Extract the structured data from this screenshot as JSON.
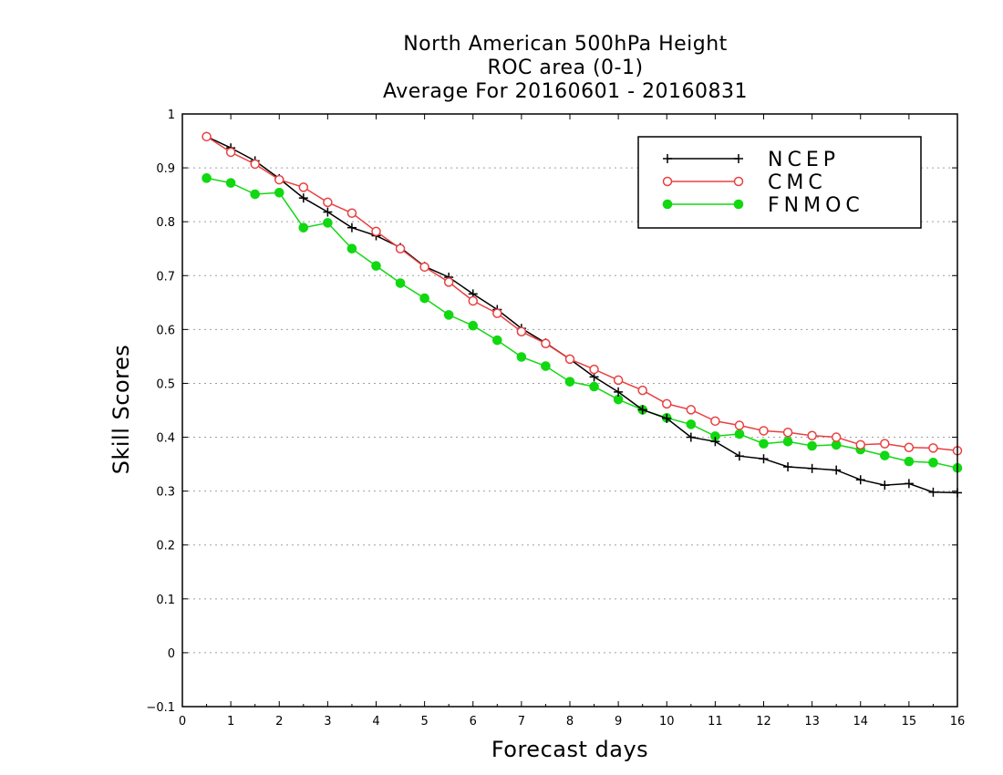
{
  "chart_data": {
    "type": "line",
    "title": [
      "North American 500hPa Height",
      "ROC area (0-1)",
      "Average For 20160601 - 20160831"
    ],
    "xlabel": "Forecast days",
    "ylabel": "Skill Scores",
    "xlim": [
      0,
      16
    ],
    "ylim": [
      -0.1,
      1
    ],
    "xticks": [
      0,
      1,
      2,
      3,
      4,
      5,
      6,
      7,
      8,
      9,
      10,
      11,
      12,
      13,
      14,
      15,
      16
    ],
    "yticks": [
      -0.1,
      0,
      0.1,
      0.2,
      0.3,
      0.4,
      0.5,
      0.6,
      0.7,
      0.8,
      0.9,
      1
    ],
    "ytick_labels": [
      "−0.1",
      "0",
      "0.1",
      "0.2",
      "0.3",
      "0.4",
      "0.5",
      "0.6",
      "0.7",
      "0.8",
      "0.9",
      "1"
    ],
    "grid": "horizontal dotted",
    "legend_position": "top-right",
    "x": [
      0.5,
      1,
      1.5,
      2,
      2.5,
      3,
      3.5,
      4,
      4.5,
      5,
      5.5,
      6,
      6.5,
      7,
      7.5,
      8,
      8.5,
      9,
      9.5,
      10,
      10.5,
      11,
      11.5,
      12,
      12.5,
      13,
      13.5,
      14,
      14.5,
      15,
      15.5,
      16
    ],
    "series": [
      {
        "name": "NCEP",
        "color": "#000000",
        "marker": "plus",
        "values": [
          0.958,
          0.937,
          0.913,
          0.88,
          0.844,
          0.818,
          0.789,
          0.774,
          0.752,
          0.717,
          0.697,
          0.666,
          0.637,
          0.602,
          0.575,
          0.545,
          0.512,
          0.484,
          0.451,
          0.435,
          0.4,
          0.392,
          0.365,
          0.36,
          0.345,
          0.342,
          0.339,
          0.321,
          0.311,
          0.314,
          0.298,
          0.297
        ]
      },
      {
        "name": "CMC",
        "color": "#e84040",
        "marker": "open-circle",
        "values": [
          0.958,
          0.929,
          0.907,
          0.878,
          0.864,
          0.836,
          0.816,
          0.782,
          0.75,
          0.716,
          0.688,
          0.653,
          0.63,
          0.596,
          0.574,
          0.545,
          0.526,
          0.506,
          0.487,
          0.462,
          0.451,
          0.43,
          0.422,
          0.412,
          0.409,
          0.403,
          0.4,
          0.386,
          0.388,
          0.381,
          0.38,
          0.375
        ]
      },
      {
        "name": "FNMOC",
        "color": "#11d811",
        "marker": "filled-circle",
        "values": [
          0.881,
          0.872,
          0.851,
          0.854,
          0.789,
          0.798,
          0.75,
          0.718,
          0.686,
          0.658,
          0.627,
          0.607,
          0.58,
          0.549,
          0.532,
          0.503,
          0.494,
          0.47,
          0.451,
          0.436,
          0.424,
          0.402,
          0.406,
          0.388,
          0.392,
          0.384,
          0.386,
          0.377,
          0.366,
          0.355,
          0.353,
          0.343
        ]
      }
    ]
  }
}
